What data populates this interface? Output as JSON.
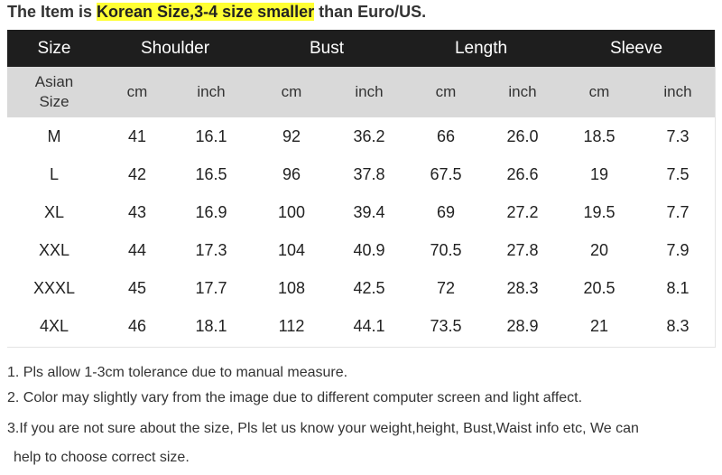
{
  "headline": {
    "prefix": "The Item is ",
    "highlight": "Korean Size,3-4 size smaller",
    "suffix": " than Euro/US."
  },
  "table": {
    "header": [
      "Size",
      "Shoulder",
      "Bust",
      "Length",
      "Sleeve"
    ],
    "units": {
      "size_label_line1": "Asian",
      "size_label_line2": "Size",
      "cm": "cm",
      "inch": "inch"
    },
    "rows": [
      [
        "M",
        "41",
        "16.1",
        "92",
        "36.2",
        "66",
        "26.0",
        "18.5",
        "7.3"
      ],
      [
        "L",
        "42",
        "16.5",
        "96",
        "37.8",
        "67.5",
        "26.6",
        "19",
        "7.5"
      ],
      [
        "XL",
        "43",
        "16.9",
        "100",
        "39.4",
        "69",
        "27.2",
        "19.5",
        "7.7"
      ],
      [
        "XXL",
        "44",
        "17.3",
        "104",
        "40.9",
        "70.5",
        "27.8",
        "20",
        "7.9"
      ],
      [
        "XXXL",
        "45",
        "17.7",
        "108",
        "42.5",
        "72",
        "28.3",
        "20.5",
        "8.1"
      ],
      [
        "4XL",
        "46",
        "18.1",
        "112",
        "44.1",
        "73.5",
        "28.9",
        "21",
        "8.3"
      ]
    ]
  },
  "notes": [
    "1. Pls allow 1-3cm tolerance due to manual measure.",
    "2. Color may slightly vary from the image due to different computer screen and light affect.",
    "3.If you are not sure about the size, Pls let us know your weight,height, Bust,Waist info etc, We can",
    "help to choose correct size."
  ],
  "colors": {
    "header_bg": "#1e1e1e",
    "unit_row_bg": "#d9d9d9",
    "highlight": "#ffff33"
  }
}
